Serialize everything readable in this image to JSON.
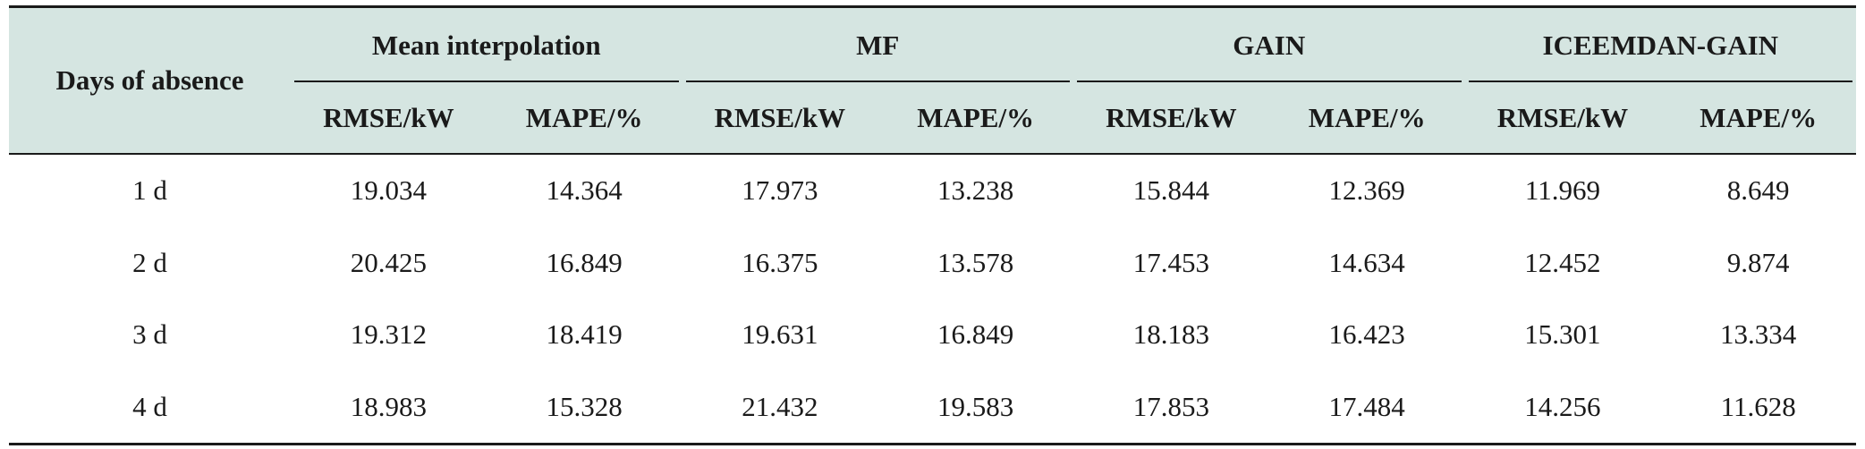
{
  "table": {
    "corner_header": "Days of absence",
    "groups": [
      {
        "label": "Mean interpolation",
        "cols": [
          "RMSE/kW",
          "MAPE/%"
        ]
      },
      {
        "label": "MF",
        "cols": [
          "RMSE/kW",
          "MAPE/%"
        ]
      },
      {
        "label": "GAIN",
        "cols": [
          "RMSE/kW",
          "MAPE/%"
        ]
      },
      {
        "label": "ICEEMDAN-GAIN",
        "cols": [
          "RMSE/kW",
          "MAPE/%"
        ]
      }
    ],
    "rows": [
      {
        "label": "1 d",
        "values": [
          "19.034",
          "14.364",
          "17.973",
          "13.238",
          "15.844",
          "12.369",
          "11.969",
          "8.649"
        ]
      },
      {
        "label": "2 d",
        "values": [
          "20.425",
          "16.849",
          "16.375",
          "13.578",
          "17.453",
          "14.634",
          "12.452",
          "9.874"
        ]
      },
      {
        "label": "3 d",
        "values": [
          "19.312",
          "18.419",
          "19.631",
          "16.849",
          "18.183",
          "16.423",
          "15.301",
          "13.334"
        ]
      },
      {
        "label": "4 d",
        "values": [
          "18.983",
          "15.328",
          "21.432",
          "19.583",
          "17.853",
          "17.484",
          "14.256",
          "11.628"
        ]
      }
    ]
  },
  "colors": {
    "header_bg": "#d5e5e1",
    "rule": "#1a1a1a",
    "text": "#1a1a1a"
  }
}
